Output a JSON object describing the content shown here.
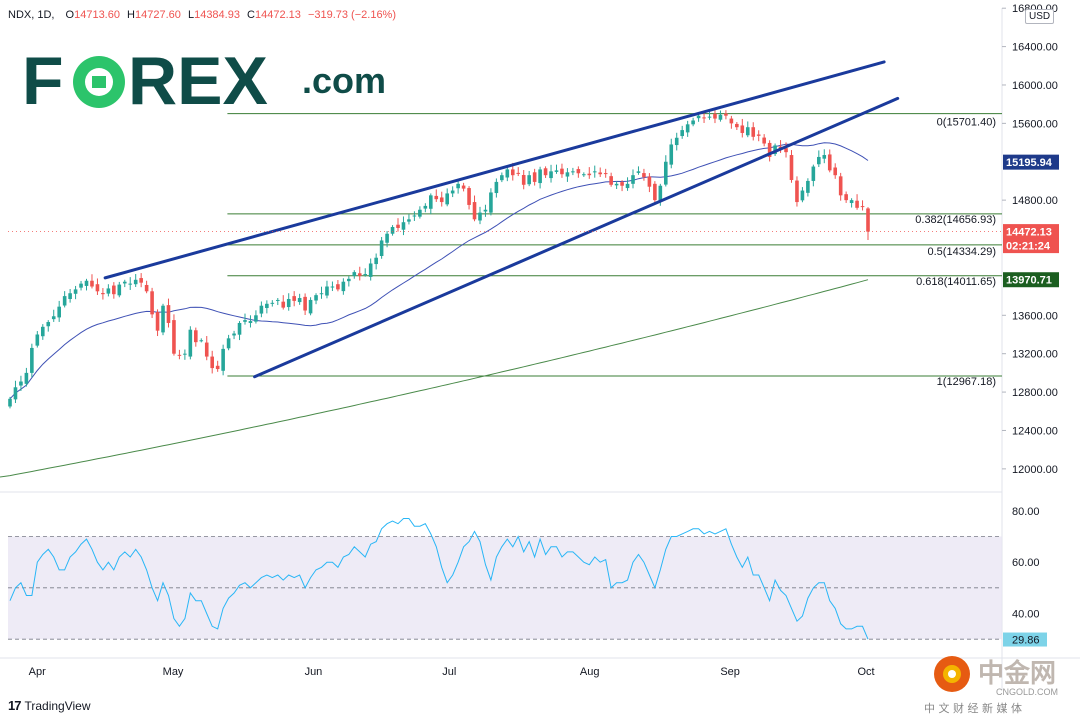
{
  "header": {
    "symbol": "NDX, 1D,",
    "o_label": "O",
    "o_value": "14713.60",
    "h_label": "H",
    "h_value": "14727.60",
    "l_label": "L",
    "l_value": "14384.93",
    "c_label": "C",
    "c_value": "14472.13",
    "change": "−319.73 (−2.16%)"
  },
  "logo": {
    "text_pre": "F",
    "text_post": "REX",
    "suffix": ".com"
  },
  "currency_button": "USD",
  "watermark": {
    "left": "TradingView",
    "cn_name": "中金网",
    "cn_domain": "CNGOLD.COM",
    "cn_sub": "中 文 财 经 新 媒 体"
  },
  "chart_data": {
    "type": "candlestick",
    "symbol": "NDX",
    "interval": "1D",
    "price_axis": {
      "ticks": [
        "16400.00",
        "16000.00",
        "15600.00",
        "14800.00",
        "13600.00",
        "13200.00",
        "12800.00",
        "12400.00",
        "12000.00"
      ],
      "ticks_partially_visible": [
        "16800.00"
      ],
      "range": [
        11900,
        16900
      ],
      "labels": [
        {
          "text": "15195.94",
          "value": 15195.94,
          "color": "#1e3a8a",
          "series": "50-day moving average"
        },
        {
          "text": "14472.13",
          "value": 14472.13,
          "color": "#ef5350",
          "series": "last price"
        },
        {
          "text": "02:21:24",
          "value": 14472.13,
          "color": "#ef5350",
          "series": "bar countdown"
        },
        {
          "text": "13970.71",
          "value": 13970.71,
          "color": "#1b5e20",
          "series": "200-day moving average"
        }
      ]
    },
    "time_axis": [
      "Apr",
      "May",
      "Jun",
      "Jul",
      "Aug",
      "Sep",
      "Oct"
    ],
    "fibonacci": [
      {
        "level": "0",
        "price": 15701.4,
        "label": "0(15701.40)"
      },
      {
        "level": "0.382",
        "price": 14656.93,
        "label": "0.382(14656.93)"
      },
      {
        "level": "0.5",
        "price": 14334.29,
        "label": "0.5(14334.29)"
      },
      {
        "level": "0.618",
        "price": 14011.65,
        "label": "0.618(14011.65)"
      },
      {
        "level": "1",
        "price": 12967.18,
        "label": "1(12967.18)"
      }
    ],
    "channel_lines": [
      {
        "from": [
          "2021-04-16",
          13990
        ],
        "to": [
          "2021-10-05",
          16240
        ]
      },
      {
        "from": [
          "2021-05-19",
          12960
        ],
        "to": [
          "2021-10-08",
          15860
        ]
      }
    ],
    "closes": [
      12730,
      12850,
      12910,
      13000,
      13260,
      13400,
      13480,
      13530,
      13590,
      13690,
      13800,
      13830,
      13870,
      13930,
      13960,
      13900,
      13850,
      13820,
      13880,
      13820,
      13920,
      13950,
      13930,
      13970,
      13940,
      13850,
      13610,
      13440,
      13700,
      13520,
      13200,
      13180,
      13200,
      13450,
      13320,
      13340,
      13170,
      13050,
      13040,
      13250,
      13360,
      13410,
      13520,
      13550,
      13540,
      13600,
      13700,
      13720,
      13730,
      13760,
      13680,
      13770,
      13750,
      13780,
      13650,
      13760,
      13810,
      13830,
      13900,
      13900,
      13870,
      13950,
      13980,
      14050,
      14010,
      14030,
      14140,
      14200,
      14380,
      14450,
      14520,
      14510,
      14570,
      14600,
      14640,
      14700,
      14740,
      14850,
      14810,
      14780,
      14870,
      14900,
      14970,
      14920,
      14750,
      14600,
      14670,
      14700,
      14880,
      14990,
      15060,
      15120,
      15060,
      15080,
      14960,
      15060,
      14990,
      15120,
      15060,
      15100,
      15110,
      15070,
      15090,
      15100,
      15080,
      15070,
      15060,
      15100,
      15070,
      15080,
      14960,
      14970,
      14950,
      14970,
      15060,
      15100,
      15040,
      14940,
      14800,
      14950,
      15200,
      15380,
      15450,
      15530,
      15590,
      15630,
      15680,
      15660,
      15670,
      15650,
      15690,
      15680,
      15600,
      15560,
      15500,
      15560,
      15460,
      15470,
      15390,
      15250,
      15370,
      15330,
      15300,
      15010,
      14780,
      14900,
      15000,
      15150,
      15250,
      15270,
      15110,
      15060,
      14850,
      14800,
      14800,
      14720,
      14730,
      14472
    ],
    "rsi": {
      "axis_ticks": [
        "80.00",
        "60.00",
        "40.00"
      ],
      "levels": [
        70,
        50,
        30
      ],
      "value_label": "29.86",
      "values": [
        45,
        50,
        52,
        47,
        47,
        60,
        63,
        65,
        62,
        57,
        57,
        62,
        64,
        67,
        69,
        65,
        60,
        57,
        60,
        57,
        62,
        64,
        62,
        65,
        62,
        57,
        50,
        45,
        52,
        47,
        38,
        35,
        38,
        48,
        45,
        45,
        40,
        35,
        34,
        42,
        46,
        48,
        51,
        52,
        50,
        52,
        54,
        55,
        54,
        55,
        53,
        55,
        54,
        55,
        50,
        54,
        57,
        58,
        60,
        60,
        58,
        62,
        63,
        66,
        64,
        62,
        67,
        68,
        73,
        75,
        76,
        75,
        77,
        77,
        74,
        74,
        75,
        71,
        66,
        58,
        52,
        55,
        60,
        66,
        68,
        72,
        68,
        59,
        53,
        62,
        66,
        69,
        66,
        70,
        64,
        68,
        62,
        69,
        63,
        66,
        66,
        62,
        64,
        64,
        62,
        60,
        59,
        62,
        60,
        61,
        50,
        52,
        52,
        53,
        60,
        63,
        60,
        55,
        50,
        57,
        65,
        70,
        70,
        71,
        72,
        73,
        73,
        71,
        72,
        71,
        72,
        73,
        67,
        62,
        58,
        62,
        55,
        55,
        50,
        45,
        53,
        49,
        47,
        42,
        37,
        39,
        46,
        50,
        52,
        52,
        45,
        42,
        36,
        34,
        34,
        35,
        35,
        30
      ]
    }
  }
}
